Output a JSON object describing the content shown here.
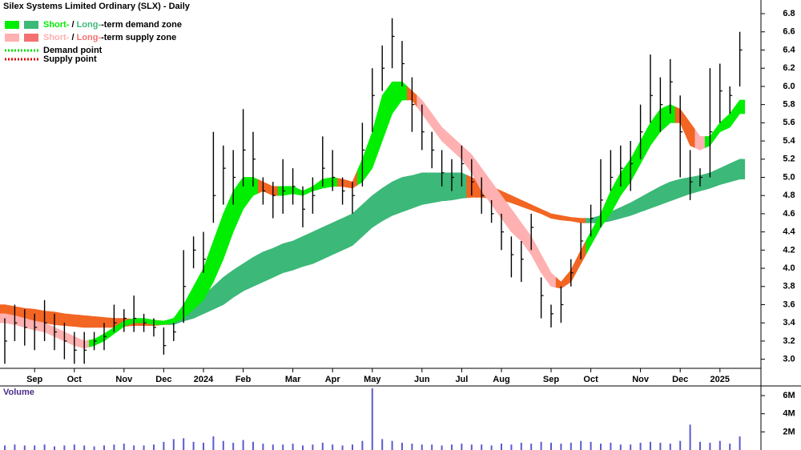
{
  "chart_data": [
    {
      "type": "ohlc",
      "title": "Silex Systems Limited Ordinary (SLX) - Daily",
      "categories": [
        null,
        null,
        null,
        "Sep",
        null,
        null,
        null,
        "Oct",
        null,
        null,
        null,
        null,
        "Nov",
        null,
        null,
        null,
        "Dec",
        null,
        null,
        null,
        "2024",
        null,
        null,
        null,
        "Feb",
        null,
        null,
        null,
        null,
        "Mar",
        null,
        null,
        null,
        "Apr",
        null,
        null,
        null,
        "May",
        null,
        null,
        null,
        null,
        "Jun",
        null,
        null,
        null,
        "Jul",
        null,
        null,
        null,
        "Aug",
        null,
        null,
        null,
        null,
        "Sep",
        null,
        null,
        null,
        "Oct",
        null,
        null,
        null,
        null,
        "Nov",
        null,
        null,
        null,
        "Dec",
        null,
        null,
        null,
        "2025",
        null,
        null
      ],
      "high": [
        3.45,
        3.6,
        3.55,
        3.5,
        3.65,
        3.5,
        3.4,
        3.3,
        3.3,
        3.3,
        3.4,
        3.6,
        3.55,
        3.7,
        3.5,
        3.45,
        3.35,
        3.4,
        4.2,
        4.35,
        4.4,
        5.5,
        5.35,
        5.3,
        5.75,
        5.5,
        5.0,
        4.95,
        5.2,
        5.1,
        4.9,
        5.0,
        5.45,
        5.3,
        5.0,
        4.95,
        5.6,
        6.2,
        6.45,
        6.75,
        6.5,
        6.1,
        5.8,
        5.5,
        5.3,
        5.2,
        5.35,
        5.2,
        5.0,
        4.75,
        4.6,
        4.35,
        4.3,
        4.6,
        3.9,
        3.6,
        3.8,
        4.1,
        4.5,
        4.7,
        5.2,
        5.3,
        5.35,
        5.4,
        5.8,
        6.35,
        6.1,
        6.3,
        5.9,
        5.3,
        5.1,
        6.2,
        6.25,
        6.0,
        6.6
      ],
      "low": [
        2.95,
        3.2,
        3.15,
        3.1,
        3.2,
        3.1,
        3.0,
        2.95,
        2.95,
        3.1,
        3.1,
        3.3,
        3.3,
        3.3,
        3.3,
        3.25,
        3.05,
        3.2,
        3.4,
        4.0,
        3.95,
        4.5,
        4.7,
        4.7,
        4.9,
        4.9,
        4.7,
        4.55,
        4.6,
        4.7,
        4.45,
        4.6,
        4.9,
        4.85,
        4.7,
        4.6,
        4.9,
        5.5,
        5.95,
        6.2,
        6.0,
        5.5,
        5.3,
        5.1,
        4.9,
        4.85,
        4.9,
        4.8,
        4.6,
        4.5,
        4.2,
        3.9,
        3.85,
        4.2,
        3.45,
        3.35,
        3.4,
        3.8,
        4.1,
        4.35,
        4.45,
        4.85,
        4.9,
        4.85,
        5.2,
        5.6,
        5.5,
        5.7,
        5.0,
        4.75,
        4.9,
        5.0,
        5.6,
        5.7,
        6.0
      ],
      "close": [
        3.2,
        3.4,
        3.35,
        3.35,
        3.4,
        3.3,
        3.2,
        3.1,
        3.1,
        3.2,
        3.25,
        3.4,
        3.45,
        3.45,
        3.4,
        3.35,
        3.15,
        3.3,
        3.8,
        4.2,
        4.1,
        4.8,
        5.1,
        5.0,
        5.3,
        5.2,
        4.85,
        4.8,
        4.85,
        4.9,
        4.65,
        4.8,
        5.1,
        5.0,
        4.85,
        4.8,
        5.3,
        5.9,
        6.2,
        6.55,
        6.25,
        5.8,
        5.5,
        5.3,
        5.05,
        5.0,
        5.15,
        4.95,
        4.8,
        4.6,
        4.4,
        4.15,
        4.1,
        4.45,
        3.7,
        3.5,
        3.6,
        3.95,
        4.3,
        4.55,
        4.75,
        5.0,
        5.1,
        5.15,
        5.5,
        5.9,
        5.8,
        6.05,
        5.5,
        4.95,
        5.0,
        5.5,
        5.95,
        5.9,
        6.4
      ],
      "bar_color": "#000000",
      "zones": [
        {
          "upper": [
            3.5,
            3.48,
            3.45,
            3.42,
            3.4,
            3.35,
            3.3,
            3.25,
            3.2,
            3.22,
            3.28,
            3.35,
            3.42,
            3.45,
            3.45,
            3.43,
            3.42,
            3.45,
            3.6,
            3.8,
            4.0,
            4.3,
            4.6,
            4.85,
            5.0,
            5.0,
            4.95,
            4.9,
            4.9,
            4.9,
            4.85,
            4.9,
            4.98,
            5.0,
            4.98,
            4.95,
            5.2,
            5.5,
            5.9,
            6.05,
            6.05,
            5.95,
            5.85,
            5.7,
            5.55,
            5.45,
            5.35,
            5.25,
            5.1,
            4.95,
            4.8,
            4.65,
            4.5,
            4.35,
            4.15,
            3.95,
            3.85,
            3.98,
            4.2,
            4.4,
            4.6,
            4.85,
            5.05,
            5.2,
            5.4,
            5.6,
            5.75,
            5.8,
            5.75,
            5.6,
            5.45,
            5.45,
            5.6,
            5.7,
            5.85
          ],
          "lower": [
            3.4,
            3.38,
            3.35,
            3.32,
            3.3,
            3.25,
            3.2,
            3.15,
            3.12,
            3.15,
            3.2,
            3.28,
            3.36,
            3.4,
            3.4,
            3.38,
            3.38,
            3.4,
            3.45,
            3.55,
            3.65,
            3.85,
            4.1,
            4.4,
            4.65,
            4.8,
            4.85,
            4.8,
            4.8,
            4.82,
            4.8,
            4.85,
            4.88,
            4.9,
            4.9,
            4.88,
            4.95,
            5.1,
            5.4,
            5.7,
            5.85,
            5.85,
            5.7,
            5.55,
            5.4,
            5.3,
            5.2,
            5.05,
            4.85,
            4.7,
            4.55,
            4.4,
            4.3,
            4.15,
            3.95,
            3.8,
            3.78,
            3.85,
            4.05,
            4.25,
            4.45,
            4.6,
            4.8,
            4.95,
            5.15,
            5.35,
            5.5,
            5.6,
            5.6,
            5.35,
            5.3,
            5.35,
            5.5,
            5.55,
            5.7
          ],
          "colors": [
            "#ffb0b0",
            "#ffb0b0",
            "#ffb0b0",
            "#ffb0b0",
            "#ffb0b0",
            "#ffb0b0",
            "#ffb0b0",
            "#ffb0b0",
            "#ffb0b0",
            "#00ee00",
            "#00ee00",
            "#00ee00",
            "#00ee00",
            "#00ee00",
            "#00ee00",
            "#00ee00",
            "#00ee00",
            "#00ee00",
            "#00ee00",
            "#00ee00",
            "#00ee00",
            "#00ee00",
            "#00ee00",
            "#00ee00",
            "#00ee00",
            "#00ee00",
            "#f26522",
            "#f26522",
            "#00ee00",
            "#00ee00",
            "#00ee00",
            "#00ee00",
            "#00ee00",
            "#00ee00",
            "#f26522",
            "#f26522",
            "#00ee00",
            "#00ee00",
            "#00ee00",
            "#00ee00",
            "#00ee00",
            "#f26522",
            "#ffb0b0",
            "#ffb0b0",
            "#ffb0b0",
            "#ffb0b0",
            "#ffb0b0",
            "#ffb0b0",
            "#ffb0b0",
            "#ffb0b0",
            "#ffb0b0",
            "#ffb0b0",
            "#ffb0b0",
            "#ffb0b0",
            "#ffb0b0",
            "#ffb0b0",
            "#f26522",
            "#f26522",
            "#f26522",
            "#00ee00",
            "#00ee00",
            "#00ee00",
            "#00ee00",
            "#00ee00",
            "#00ee00",
            "#00ee00",
            "#00ee00",
            "#00ee00",
            "#f26522",
            "#f26522",
            "#ffb0b0",
            "#00ee00",
            "#00ee00",
            "#00ee00",
            "#00ee00"
          ]
        },
        {
          "upper": [
            3.6,
            3.58,
            3.56,
            3.55,
            3.53,
            3.52,
            3.5,
            3.49,
            3.48,
            3.47,
            3.46,
            3.45,
            3.45,
            3.44,
            3.44,
            3.43,
            3.42,
            3.42,
            3.5,
            3.6,
            3.7,
            3.8,
            3.9,
            3.98,
            4.05,
            4.12,
            4.18,
            4.22,
            4.27,
            4.3,
            4.35,
            4.4,
            4.45,
            4.5,
            4.55,
            4.6,
            4.7,
            4.8,
            4.88,
            4.95,
            5.0,
            5.02,
            5.05,
            5.05,
            5.05,
            5.05,
            5.05,
            5.0,
            4.95,
            4.9,
            4.85,
            4.8,
            4.75,
            4.7,
            4.65,
            4.6,
            4.58,
            4.56,
            4.55,
            4.55,
            4.58,
            4.62,
            4.67,
            4.72,
            4.78,
            4.84,
            4.9,
            4.95,
            4.98,
            5.0,
            5.02,
            5.05,
            5.1,
            5.15,
            5.2
          ],
          "lower": [
            3.45,
            3.43,
            3.42,
            3.4,
            3.4,
            3.38,
            3.37,
            3.36,
            3.35,
            3.35,
            3.35,
            3.35,
            3.36,
            3.37,
            3.37,
            3.37,
            3.38,
            3.38,
            3.42,
            3.45,
            3.5,
            3.55,
            3.6,
            3.68,
            3.75,
            3.8,
            3.85,
            3.9,
            3.95,
            3.98,
            4.02,
            4.05,
            4.1,
            4.15,
            4.2,
            4.25,
            4.35,
            4.45,
            4.52,
            4.58,
            4.62,
            4.66,
            4.7,
            4.72,
            4.74,
            4.75,
            4.77,
            4.78,
            4.78,
            4.77,
            4.75,
            4.72,
            4.68,
            4.64,
            4.6,
            4.55,
            4.53,
            4.52,
            4.5,
            4.5,
            4.5,
            4.52,
            4.55,
            4.58,
            4.62,
            4.66,
            4.7,
            4.74,
            4.78,
            4.82,
            4.85,
            4.88,
            4.92,
            4.95,
            4.98
          ],
          "colors": [
            "#f26522",
            "#f26522",
            "#f26522",
            "#f26522",
            "#f26522",
            "#f26522",
            "#f26522",
            "#f26522",
            "#f26522",
            "#f26522",
            "#f26522",
            "#f26522",
            "#f26522",
            "#f26522",
            "#f26522",
            "#f26522",
            "#f26522",
            "#3cb878",
            "#3cb878",
            "#3cb878",
            "#3cb878",
            "#3cb878",
            "#3cb878",
            "#3cb878",
            "#3cb878",
            "#3cb878",
            "#3cb878",
            "#3cb878",
            "#3cb878",
            "#3cb878",
            "#3cb878",
            "#3cb878",
            "#3cb878",
            "#3cb878",
            "#3cb878",
            "#3cb878",
            "#3cb878",
            "#3cb878",
            "#3cb878",
            "#3cb878",
            "#3cb878",
            "#3cb878",
            "#3cb878",
            "#3cb878",
            "#3cb878",
            "#3cb878",
            "#3cb878",
            "#f26522",
            "#f26522",
            "#f26522",
            "#f26522",
            "#f26522",
            "#f26522",
            "#f26522",
            "#f26522",
            "#f26522",
            "#f26522",
            "#f26522",
            "#f26522",
            "#3cb878",
            "#3cb878",
            "#3cb878",
            "#3cb878",
            "#3cb878",
            "#3cb878",
            "#3cb878",
            "#3cb878",
            "#3cb878",
            "#3cb878",
            "#3cb878",
            "#3cb878",
            "#3cb878",
            "#3cb878",
            "#3cb878",
            "#3cb878"
          ]
        }
      ],
      "ylim": [
        2.9,
        6.95
      ],
      "yticks": [
        {
          "value": 3,
          "label": "3.0"
        },
        3.2,
        3.4,
        3.6,
        3.8,
        {
          "value": 4,
          "label": "4.0"
        },
        4.2,
        4.4,
        4.6,
        4.8,
        {
          "value": 5,
          "label": "5.0"
        },
        5.2,
        5.4,
        5.6,
        5.8,
        {
          "value": 6,
          "label": "6.0"
        },
        6.2,
        6.4,
        6.6,
        6.8
      ],
      "legend": {
        "separator": " / ",
        "items": [
          {
            "short": "Short-",
            "long": "Long-",
            "suffix": "-term demand zone",
            "colors": [
              "#00ee00",
              "#3cb878"
            ]
          },
          {
            "short": "Short-",
            "long": "Long-",
            "suffix": "-term supply zone",
            "colors": [
              "#ffb0b0",
              "#f47070"
            ]
          }
        ],
        "points": [
          {
            "name": "Demand point",
            "color": "#00dd00"
          },
          {
            "name": "Supply point",
            "color": "#dd0000"
          }
        ]
      }
    },
    {
      "type": "bar",
      "title": "Volume",
      "color": "#5b5bcf",
      "values": [
        500000,
        600000,
        500000,
        500000,
        600000,
        400000,
        500000,
        600000,
        500000,
        400000,
        500000,
        600000,
        700000,
        500000,
        500000,
        600000,
        900000,
        1200000,
        1300000,
        900000,
        800000,
        1500000,
        1000000,
        800000,
        1100000,
        900000,
        700000,
        600000,
        600000,
        700000,
        500000,
        600000,
        800000,
        600000,
        500000,
        600000,
        1000000,
        6800000,
        1200000,
        1000000,
        800000,
        700000,
        600000,
        600000,
        500000,
        600000,
        700000,
        600000,
        600000,
        500000,
        700000,
        600000,
        800000,
        700000,
        900000,
        800000,
        700000,
        800000,
        1000000,
        900000,
        700000,
        800000,
        600000,
        600000,
        800000,
        900000,
        800000,
        700000,
        1000000,
        2800000,
        900000,
        800000,
        1000000,
        700000,
        1500000
      ],
      "ylim": [
        0,
        6800000
      ],
      "yticks": [
        {
          "value": 2000000,
          "label": "2M"
        },
        {
          "value": 4000000,
          "label": "4M"
        },
        {
          "value": 6000000,
          "label": "6M"
        }
      ]
    }
  ]
}
